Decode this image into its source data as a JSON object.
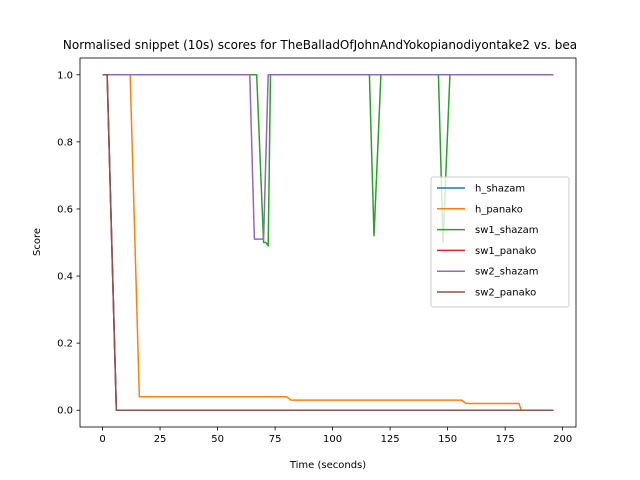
{
  "chart_data": {
    "type": "line",
    "title": "Normalised snippet (10s) scores for TheBalladOfJohnAndYokopianodiyontake2 vs. bea",
    "xlabel": "Time (seconds)",
    "ylabel": "Score",
    "xlim": [
      -9.8,
      205.8
    ],
    "ylim": [
      -0.05,
      1.05
    ],
    "xticks": [
      0,
      25,
      50,
      75,
      100,
      125,
      150,
      175,
      200
    ],
    "yticks": [
      0.0,
      0.2,
      0.4,
      0.6,
      0.8,
      1.0
    ],
    "xtick_labels": [
      "0",
      "25",
      "50",
      "75",
      "100",
      "125",
      "150",
      "175",
      "200"
    ],
    "ytick_labels": [
      "0.0",
      "0.2",
      "0.4",
      "0.6",
      "0.8",
      "1.0"
    ],
    "grid": false,
    "legend_position": "center-right",
    "series": [
      {
        "name": "h_shazam",
        "color": "#1f77b4",
        "points": [
          [
            0,
            1.0
          ],
          [
            2,
            1.0
          ],
          [
            6,
            0.0
          ],
          [
            196,
            0.0
          ]
        ]
      },
      {
        "name": "h_panako",
        "color": "#ff7f0e",
        "points": [
          [
            0,
            1.0
          ],
          [
            12,
            1.0
          ],
          [
            16,
            0.04
          ],
          [
            80,
            0.04
          ],
          [
            82,
            0.03
          ],
          [
            156,
            0.03
          ],
          [
            158,
            0.02
          ],
          [
            181,
            0.02
          ],
          [
            182,
            0.0
          ],
          [
            196,
            0.0
          ]
        ]
      },
      {
        "name": "sw1_shazam",
        "color": "#2ca02c",
        "points": [
          [
            0,
            1.0
          ],
          [
            67,
            1.0
          ],
          [
            70,
            0.5
          ],
          [
            71,
            0.5
          ],
          [
            72,
            0.49
          ],
          [
            73,
            1.0
          ],
          [
            116,
            1.0
          ],
          [
            118,
            0.52
          ],
          [
            121,
            1.0
          ],
          [
            146,
            1.0
          ],
          [
            148,
            0.5
          ],
          [
            151,
            1.0
          ],
          [
            196,
            1.0
          ]
        ]
      },
      {
        "name": "sw1_panako",
        "color": "#d62728",
        "points": [
          [
            0,
            1.0
          ],
          [
            2,
            1.0
          ],
          [
            6,
            0.0
          ],
          [
            196,
            0.0
          ]
        ]
      },
      {
        "name": "sw2_shazam",
        "color": "#9467bd",
        "points": [
          [
            0,
            1.0
          ],
          [
            64,
            1.0
          ],
          [
            66,
            0.51
          ],
          [
            70,
            0.51
          ],
          [
            72,
            1.0
          ],
          [
            196,
            1.0
          ]
        ]
      },
      {
        "name": "sw2_panako",
        "color": "#8c564b",
        "points": [
          [
            0,
            1.0
          ],
          [
            2,
            1.0
          ],
          [
            6,
            0.0
          ],
          [
            196,
            0.0
          ]
        ]
      }
    ]
  }
}
